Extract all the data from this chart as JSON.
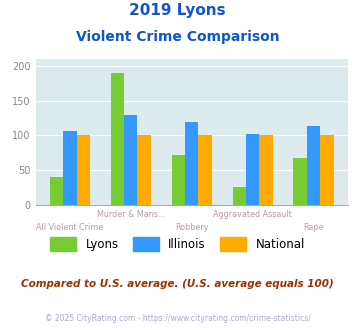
{
  "title_line1": "2019 Lyons",
  "title_line2": "Violent Crime Comparison",
  "lyons": [
    40,
    190,
    72,
    25,
    68
  ],
  "illinois": [
    107,
    130,
    120,
    102,
    113
  ],
  "national": [
    100,
    100,
    100,
    100,
    100
  ],
  "lyons_color": "#77cc33",
  "illinois_color": "#3399ff",
  "national_color": "#ffaa00",
  "bg_color": "#ddeaee",
  "title_color": "#1155cc",
  "xlabel_top_color": "#bb99aa",
  "xlabel_bot_color": "#bb99aa",
  "ylabel_color": "#888888",
  "footer_color": "#aaaacc",
  "compare_color": "#993300",
  "ylim": [
    0,
    210
  ],
  "yticks": [
    0,
    50,
    100,
    150,
    200
  ],
  "line1": [
    "",
    "Murder & Mans...",
    "",
    "Aggravated Assault",
    ""
  ],
  "line2": [
    "All Violent Crime",
    "",
    "Robbery",
    "",
    "Rape"
  ],
  "note": "Compared to U.S. average. (U.S. average equals 100)",
  "footer": "© 2025 CityRating.com - https://www.cityrating.com/crime-statistics/"
}
